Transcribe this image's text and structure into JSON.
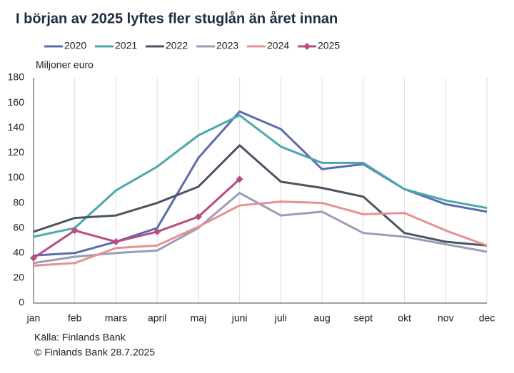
{
  "chart_data": {
    "type": "line",
    "title": "I början av 2025 lyftes fler stuglån än året innan",
    "y_label": "Miljoner euro",
    "categories": [
      "jan",
      "feb",
      "mars",
      "april",
      "maj",
      "juni",
      "juli",
      "aug",
      "sept",
      "okt",
      "nov",
      "dec"
    ],
    "series": [
      {
        "name": "2020",
        "color": "#5a6bb0",
        "values": [
          38,
          40,
          49,
          60,
          116,
          153,
          139,
          107,
          111,
          91,
          79,
          73
        ]
      },
      {
        "name": "2021",
        "color": "#4aa8ad",
        "values": [
          53,
          60,
          90,
          109,
          134,
          150,
          125,
          112,
          112,
          91,
          82,
          76
        ]
      },
      {
        "name": "2022",
        "color": "#4a5561",
        "values": [
          57,
          68,
          70,
          80,
          93,
          126,
          97,
          92,
          85,
          56,
          49,
          46
        ]
      },
      {
        "name": "2023",
        "color": "#9a9cbb",
        "values": [
          32,
          37,
          40,
          42,
          60,
          88,
          70,
          73,
          56,
          53,
          47,
          41
        ]
      },
      {
        "name": "2024",
        "color": "#e89090",
        "values": [
          30,
          32,
          44,
          46,
          61,
          78,
          81,
          80,
          71,
          72,
          58,
          46
        ]
      },
      {
        "name": "2025",
        "color": "#b84d82",
        "marker": "diamond",
        "values": [
          36,
          58,
          49,
          57,
          69,
          99,
          null,
          null,
          null,
          null,
          null,
          null
        ]
      }
    ],
    "ylim": [
      0,
      180
    ],
    "yticks": [
      0,
      20,
      40,
      60,
      80,
      100,
      120,
      140,
      160,
      180
    ],
    "grid": "x",
    "legend": "top",
    "source": "Källa: Finlands Bank",
    "copyright": "© Finlands Bank 28.7.2025"
  }
}
